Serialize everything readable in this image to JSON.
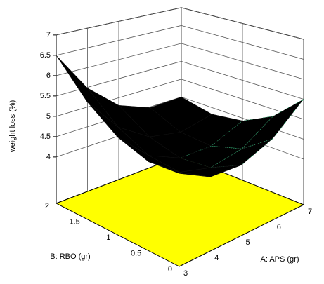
{
  "chart_data": {
    "type": "surface3d",
    "x_label": "A: APS (gr)",
    "y_label": "B: RBO (gr)",
    "z_label": "weight loss (%)",
    "x": [
      3,
      4,
      5,
      6,
      7
    ],
    "y": [
      0,
      0.5,
      1,
      1.5,
      2
    ],
    "z": [
      [
        5.0,
        4.6,
        4.55,
        4.85,
        5.5
      ],
      [
        4.94,
        4.39,
        4.18,
        4.32,
        4.82
      ],
      [
        5.18,
        4.46,
        4.1,
        4.09,
        4.43
      ],
      [
        5.7,
        4.83,
        4.31,
        4.14,
        4.32
      ],
      [
        6.5,
        5.48,
        4.8,
        4.48,
        4.5
      ]
    ],
    "xlim": [
      3,
      7
    ],
    "ylim": [
      0,
      2
    ],
    "zlim": [
      4,
      7
    ],
    "xticks": [
      3,
      4,
      5,
      6,
      7
    ],
    "yticks": [
      0,
      0.5,
      1,
      1.5,
      2
    ],
    "zticks": [
      4,
      4.5,
      5,
      5.5,
      6,
      6.5,
      7
    ],
    "surface_color": "#000000",
    "floor_color": "#ffff00",
    "grid": true
  }
}
